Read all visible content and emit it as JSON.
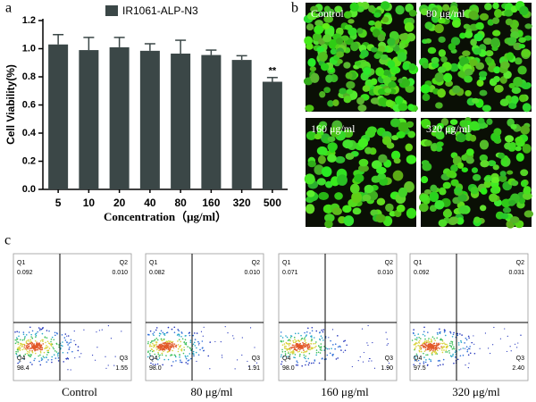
{
  "panel_labels": [
    "a",
    "b",
    "c"
  ],
  "chart_data": {
    "type": "bar",
    "categories": [
      "5",
      "10",
      "20",
      "40",
      "80",
      "160",
      "320",
      "500"
    ],
    "series": [
      {
        "name": "IR1061-ALP-N3",
        "color": "#3b4747",
        "values": [
          1.03,
          0.99,
          1.01,
          0.985,
          0.965,
          0.955,
          0.92,
          0.765
        ],
        "errors": [
          0.07,
          0.09,
          0.07,
          0.05,
          0.095,
          0.035,
          0.03,
          0.03
        ]
      }
    ],
    "ylim": [
      0,
      1.2
    ],
    "yticks": [
      {
        "value": 0,
        "label": "0.0"
      },
      0.2,
      0.4,
      0.6,
      0.8,
      {
        "value": 1,
        "label": "1.0"
      },
      1.2
    ],
    "xlabel": "Concentration（μg/ml）",
    "ylabel": "Cell Viability(%)",
    "annotations": [
      {
        "category": "500",
        "text": "**"
      }
    ]
  },
  "images": {
    "labels": [
      "Control",
      "80 μg/ml",
      "160 μg/ml",
      "320 μg/ml"
    ]
  },
  "flow": {
    "quadrant_names": [
      "Q1",
      "Q2",
      "Q3",
      "Q4"
    ],
    "plots": [
      {
        "label": "Control",
        "Q1": "0.092",
        "Q2": "0.010",
        "Q3": "1.55",
        "Q4": "98.4"
      },
      {
        "label": "80 μg/ml",
        "Q1": "0.082",
        "Q2": "0.010",
        "Q3": "1.91",
        "Q4": "98.0"
      },
      {
        "label": "160 μg/ml",
        "Q1": "0.071",
        "Q2": "0.010",
        "Q3": "1.90",
        "Q4": "98.0"
      },
      {
        "label": "320 μg/ml",
        "Q1": "0.092",
        "Q2": "0.031",
        "Q3": "2.40",
        "Q4": "97.5"
      }
    ]
  }
}
